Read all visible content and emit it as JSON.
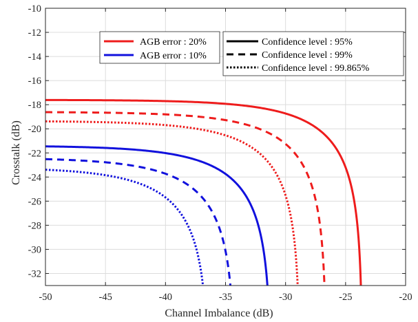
{
  "chart_data": {
    "type": "line",
    "title": "",
    "xlabel": "Channel Imbalance (dB)",
    "ylabel": "Crosstalk (dB)",
    "xlim": [
      -50,
      -20
    ],
    "ylim": [
      -33,
      -10
    ],
    "xticks": [
      -50,
      -45,
      -40,
      -35,
      -30,
      -25,
      -20
    ],
    "yticks": [
      -10,
      -12,
      -14,
      -16,
      -18,
      -20,
      -22,
      -24,
      -26,
      -28,
      -30,
      -32
    ],
    "xtick_labels": [
      "-50",
      "-45",
      "-40",
      "-35",
      "-30",
      "-25",
      "-20"
    ],
    "ytick_labels": [
      "-10",
      "-12",
      "-14",
      "-16",
      "-18",
      "-20",
      "-22",
      "-24",
      "-26",
      "-28",
      "-30",
      "-32"
    ],
    "grid": true,
    "colors": {
      "agb20": "#ee1c1c",
      "agb10": "#1111dd",
      "grid": "#dcdcdc",
      "axis": "#262626"
    },
    "legend_color": {
      "position": "top-left",
      "entries": [
        {
          "label": "AGB error : 20%",
          "color": "#ee1c1c"
        },
        {
          "label": "AGB error : 10%",
          "color": "#1111dd"
        }
      ]
    },
    "legend_style": {
      "position": "top-right",
      "entries": [
        {
          "label": "Confidence level : 95%",
          "style": "solid"
        },
        {
          "label": "Confidence level : 99%",
          "style": "dashed"
        },
        {
          "label": "Confidence level : 99.865%",
          "style": "dotted"
        }
      ]
    },
    "series": [
      {
        "group": "AGB error : 20%",
        "confidence": "95%",
        "color": "#ee1c1c",
        "style": "solid",
        "plateau": -17.6,
        "asymptote": -23.6
      },
      {
        "group": "AGB error : 20%",
        "confidence": "99%",
        "color": "#ee1c1c",
        "style": "dashed",
        "plateau": -18.6,
        "asymptote": -26.6
      },
      {
        "group": "AGB error : 20%",
        "confidence": "99.865%",
        "color": "#ee1c1c",
        "style": "dotted",
        "plateau": -19.35,
        "asymptote": -28.8
      },
      {
        "group": "AGB error : 10%",
        "confidence": "95%",
        "color": "#1111dd",
        "style": "solid",
        "plateau": -21.4,
        "asymptote": -31.2
      },
      {
        "group": "AGB error : 10%",
        "confidence": "99%",
        "color": "#1111dd",
        "style": "dashed",
        "plateau": -22.4,
        "asymptote": -34.2
      },
      {
        "group": "AGB error : 10%",
        "confidence": "99.865%",
        "color": "#1111dd",
        "style": "dotted",
        "plateau": -23.2,
        "asymptote": -36.4
      }
    ]
  }
}
